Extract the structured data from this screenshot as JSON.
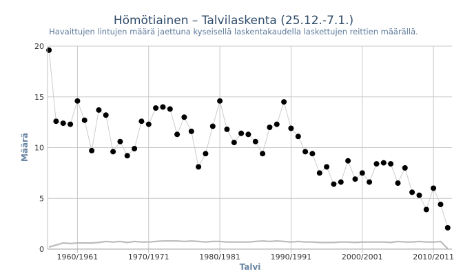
{
  "chart_data": {
    "type": "line",
    "title": "Hömötiainen – Talvilaskenta (25.12.-7.1.)",
    "subtitle": "Havaittujen lintujen määrä jaettuna kyseisellä laskentakaudella laskettujen reittien määrällä.",
    "xlabel": "Talvi",
    "ylabel": "Määrä",
    "ylim": [
      0,
      20
    ],
    "y_ticks": [
      0,
      5,
      10,
      15,
      20
    ],
    "x_ticks": [
      {
        "value": 1960,
        "label": "1960/1961"
      },
      {
        "value": 1970,
        "label": "1970/1971"
      },
      {
        "value": 1980,
        "label": "1980/1981"
      },
      {
        "value": 1990,
        "label": "1990/1991"
      },
      {
        "value": 2000,
        "label": "2000/2001"
      },
      {
        "value": 2010,
        "label": "2010/2011"
      }
    ],
    "xlim": [
      1955.8,
      2012.6
    ],
    "grid": true,
    "series": [
      {
        "name": "",
        "color": "#000000",
        "line_color": "#cccccc",
        "marker": "circle",
        "x": [
          1956,
          1957,
          1958,
          1959,
          1960,
          1961,
          1962,
          1963,
          1964,
          1965,
          1966,
          1967,
          1968,
          1969,
          1970,
          1971,
          1972,
          1973,
          1974,
          1975,
          1976,
          1977,
          1978,
          1979,
          1980,
          1981,
          1982,
          1983,
          1984,
          1985,
          1986,
          1987,
          1988,
          1989,
          1990,
          1991,
          1992,
          1993,
          1994,
          1995,
          1996,
          1997,
          1998,
          1999,
          2000,
          2001,
          2002,
          2003,
          2004,
          2005,
          2006,
          2007,
          2008,
          2009,
          2010,
          2011,
          2012
        ],
        "values": [
          19.6,
          12.6,
          12.4,
          12.3,
          14.6,
          12.7,
          9.7,
          13.7,
          13.2,
          9.6,
          10.6,
          9.2,
          9.9,
          12.6,
          12.3,
          13.9,
          14.0,
          13.8,
          11.3,
          13.0,
          11.6,
          8.1,
          9.4,
          12.1,
          14.6,
          11.8,
          10.5,
          11.4,
          11.3,
          10.6,
          9.4,
          12.0,
          12.3,
          14.5,
          11.9,
          11.1,
          9.6,
          9.4,
          7.5,
          8.1,
          6.4,
          6.6,
          8.7,
          6.9,
          7.5,
          6.6,
          8.4,
          8.5,
          8.4,
          6.5,
          8.0,
          5.6,
          5.3,
          3.9,
          6.0,
          4.4,
          2.1
        ]
      },
      {
        "name": "",
        "color": "#bbbbbb",
        "marker": "none",
        "x": [
          1956,
          1957,
          1958,
          1959,
          1960,
          1961,
          1962,
          1963,
          1964,
          1965,
          1966,
          1967,
          1968,
          1969,
          1970,
          1971,
          1972,
          1973,
          1974,
          1975,
          1976,
          1977,
          1978,
          1979,
          1980,
          1981,
          1982,
          1983,
          1984,
          1985,
          1986,
          1987,
          1988,
          1989,
          1990,
          1991,
          1992,
          1993,
          1994,
          1995,
          1996,
          1997,
          1998,
          1999,
          2000,
          2001,
          2002,
          2003,
          2004,
          2005,
          2006,
          2007,
          2008,
          2009,
          2010,
          2011,
          2012
        ],
        "values": [
          0.2,
          0.4,
          0.6,
          0.55,
          0.6,
          0.6,
          0.6,
          0.65,
          0.75,
          0.7,
          0.75,
          0.65,
          0.75,
          0.7,
          0.7,
          0.75,
          0.8,
          0.8,
          0.8,
          0.75,
          0.8,
          0.75,
          0.7,
          0.75,
          0.75,
          0.7,
          0.7,
          0.7,
          0.7,
          0.75,
          0.8,
          0.75,
          0.8,
          0.75,
          0.7,
          0.75,
          0.7,
          0.7,
          0.65,
          0.65,
          0.65,
          0.7,
          0.7,
          0.65,
          0.7,
          0.7,
          0.7,
          0.7,
          0.65,
          0.75,
          0.7,
          0.7,
          0.75,
          0.7,
          0.7,
          0.75,
          0.05
        ]
      }
    ]
  }
}
